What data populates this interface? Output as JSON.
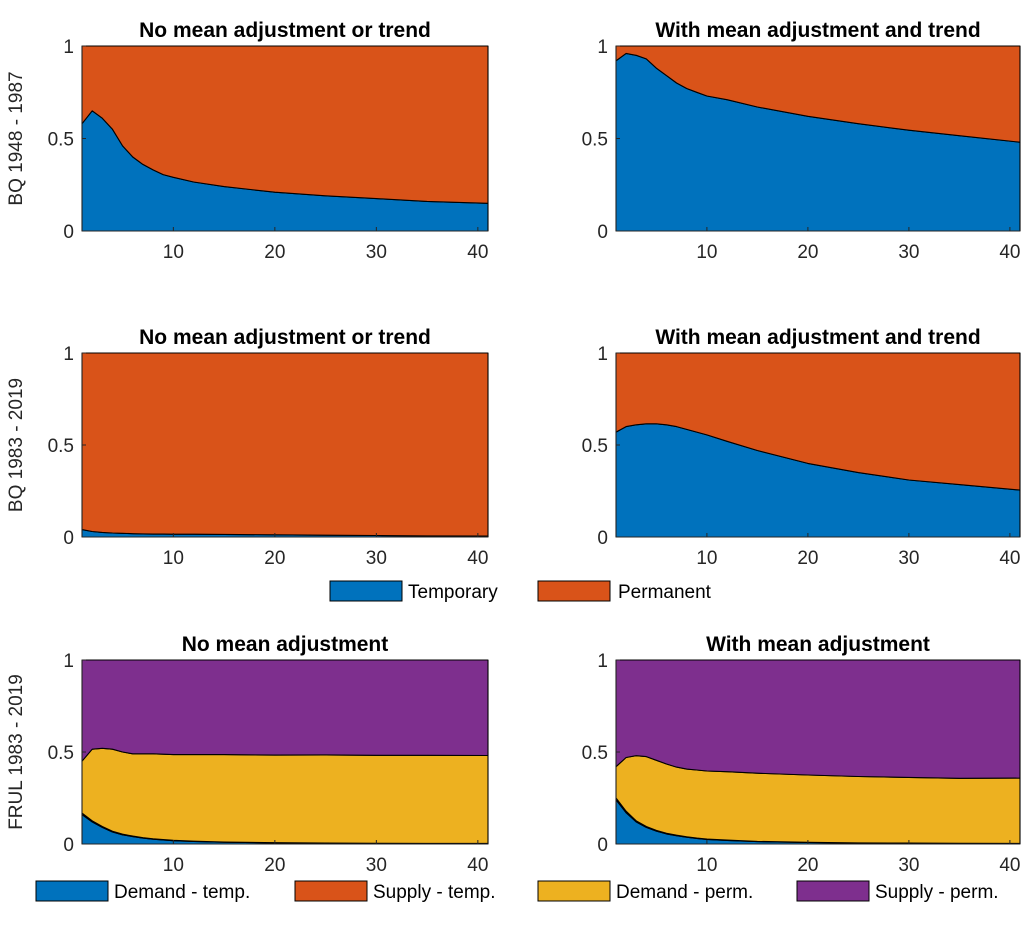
{
  "colors": {
    "blue": "#0072BD",
    "orange": "#D95319",
    "yellow": "#EDB120",
    "purple": "#7E2F8E"
  },
  "row_labels": [
    "BQ 1948 - 1987",
    "BQ 1983 - 2019",
    "FRUL 1983 - 2019"
  ],
  "legend_two": [
    {
      "label": "Temporary",
      "color": "#0072BD"
    },
    {
      "label": "Permanent",
      "color": "#D95319"
    }
  ],
  "legend_four": [
    {
      "label": "Demand - temp.",
      "color": "#0072BD"
    },
    {
      "label": "Supply - temp.",
      "color": "#D95319"
    },
    {
      "label": "Demand - perm.",
      "color": "#EDB120"
    },
    {
      "label": "Supply - perm.",
      "color": "#7E2F8E"
    }
  ],
  "chart_data": [
    {
      "type": "area",
      "title": "No mean adjustment or trend",
      "ylabel": "BQ 1948 - 1987",
      "xlim": [
        1,
        41
      ],
      "ylim": [
        0,
        1
      ],
      "xticks": [
        10,
        20,
        30,
        40
      ],
      "yticks": [
        0,
        0.5,
        1
      ],
      "x": [
        1,
        2,
        3,
        4,
        5,
        6,
        7,
        8,
        9,
        10,
        12,
        15,
        20,
        25,
        30,
        35,
        41
      ],
      "series": [
        {
          "name": "Temporary",
          "color": "#0072BD",
          "values": [
            0.58,
            0.65,
            0.61,
            0.55,
            0.46,
            0.4,
            0.36,
            0.33,
            0.305,
            0.29,
            0.265,
            0.24,
            0.21,
            0.19,
            0.175,
            0.16,
            0.15
          ]
        },
        {
          "name": "Permanent",
          "color": "#D95319",
          "values": [
            0.42,
            0.35,
            0.39,
            0.45,
            0.54,
            0.6,
            0.64,
            0.67,
            0.695,
            0.71,
            0.735,
            0.76,
            0.79,
            0.81,
            0.825,
            0.84,
            0.85
          ]
        }
      ]
    },
    {
      "type": "area",
      "title": "With mean adjustment and trend",
      "xlim": [
        1,
        41
      ],
      "ylim": [
        0,
        1
      ],
      "xticks": [
        10,
        20,
        30,
        40
      ],
      "yticks": [
        0,
        0.5,
        1
      ],
      "x": [
        1,
        2,
        3,
        4,
        5,
        6,
        7,
        8,
        9,
        10,
        12,
        15,
        20,
        25,
        30,
        35,
        41
      ],
      "series": [
        {
          "name": "Temporary",
          "color": "#0072BD",
          "values": [
            0.92,
            0.96,
            0.95,
            0.93,
            0.88,
            0.84,
            0.8,
            0.77,
            0.75,
            0.73,
            0.71,
            0.67,
            0.62,
            0.58,
            0.545,
            0.515,
            0.48
          ]
        },
        {
          "name": "Permanent",
          "color": "#D95319",
          "values": [
            0.08,
            0.04,
            0.05,
            0.07,
            0.12,
            0.16,
            0.2,
            0.23,
            0.25,
            0.27,
            0.29,
            0.33,
            0.38,
            0.42,
            0.455,
            0.485,
            0.52
          ]
        }
      ]
    },
    {
      "type": "area",
      "title": "No mean adjustment or trend",
      "ylabel": "BQ 1983 - 2019",
      "xlim": [
        1,
        41
      ],
      "ylim": [
        0,
        1
      ],
      "xticks": [
        10,
        20,
        30,
        40
      ],
      "yticks": [
        0,
        0.5,
        1
      ],
      "x": [
        1,
        2,
        3,
        4,
        5,
        6,
        7,
        8,
        9,
        10,
        12,
        15,
        20,
        25,
        30,
        35,
        41
      ],
      "series": [
        {
          "name": "Temporary",
          "color": "#0072BD",
          "values": [
            0.04,
            0.03,
            0.025,
            0.022,
            0.02,
            0.018,
            0.017,
            0.016,
            0.016,
            0.015,
            0.015,
            0.014,
            0.012,
            0.01,
            0.008,
            0.006,
            0.005
          ]
        },
        {
          "name": "Permanent",
          "color": "#D95319",
          "values": [
            0.96,
            0.97,
            0.975,
            0.978,
            0.98,
            0.982,
            0.983,
            0.984,
            0.984,
            0.985,
            0.985,
            0.986,
            0.988,
            0.99,
            0.992,
            0.994,
            0.995
          ]
        }
      ]
    },
    {
      "type": "area",
      "title": "With mean adjustment and trend",
      "xlim": [
        1,
        41
      ],
      "ylim": [
        0,
        1
      ],
      "xticks": [
        10,
        20,
        30,
        40
      ],
      "yticks": [
        0,
        0.5,
        1
      ],
      "x": [
        1,
        2,
        3,
        4,
        5,
        6,
        7,
        8,
        9,
        10,
        12,
        15,
        20,
        25,
        30,
        35,
        41
      ],
      "series": [
        {
          "name": "Temporary",
          "color": "#0072BD",
          "values": [
            0.57,
            0.6,
            0.61,
            0.615,
            0.615,
            0.61,
            0.6,
            0.585,
            0.57,
            0.555,
            0.52,
            0.47,
            0.4,
            0.35,
            0.31,
            0.285,
            0.255
          ]
        },
        {
          "name": "Permanent",
          "color": "#D95319",
          "values": [
            0.43,
            0.4,
            0.39,
            0.385,
            0.385,
            0.39,
            0.4,
            0.415,
            0.43,
            0.445,
            0.48,
            0.53,
            0.6,
            0.65,
            0.69,
            0.715,
            0.745
          ]
        }
      ]
    },
    {
      "type": "area",
      "title": "No mean adjustment",
      "ylabel": "FRUL 1983 - 2019",
      "xlim": [
        1,
        41
      ],
      "ylim": [
        0,
        1
      ],
      "xticks": [
        10,
        20,
        30,
        40
      ],
      "yticks": [
        0,
        0.5,
        1
      ],
      "x": [
        1,
        2,
        3,
        4,
        5,
        6,
        7,
        8,
        9,
        10,
        12,
        15,
        20,
        25,
        30,
        35,
        41
      ],
      "series": [
        {
          "name": "Demand - temp.",
          "color": "#0072BD",
          "values": [
            0.16,
            0.12,
            0.09,
            0.065,
            0.05,
            0.04,
            0.032,
            0.026,
            0.022,
            0.018,
            0.014,
            0.01,
            0.006,
            0.004,
            0.003,
            0.002,
            0.002
          ]
        },
        {
          "name": "Supply - temp.",
          "color": "#D95319",
          "values": [
            0.008,
            0.006,
            0.005,
            0.004,
            0.003,
            0.003,
            0.002,
            0.002,
            0.002,
            0.002,
            0.001,
            0.001,
            0.001,
            0.001,
            0.001,
            0.001,
            0.001
          ]
        },
        {
          "name": "Demand - perm.",
          "color": "#EDB120",
          "values": [
            0.282,
            0.389,
            0.425,
            0.446,
            0.447,
            0.447,
            0.456,
            0.462,
            0.464,
            0.466,
            0.471,
            0.475,
            0.476,
            0.479,
            0.478,
            0.479,
            0.478
          ]
        },
        {
          "name": "Supply - perm.",
          "color": "#7E2F8E",
          "values": [
            0.55,
            0.485,
            0.48,
            0.485,
            0.5,
            0.51,
            0.51,
            0.51,
            0.512,
            0.514,
            0.514,
            0.514,
            0.517,
            0.516,
            0.518,
            0.518,
            0.519
          ]
        }
      ]
    },
    {
      "type": "area",
      "title": "With mean adjustment",
      "xlim": [
        1,
        41
      ],
      "ylim": [
        0,
        1
      ],
      "xticks": [
        10,
        20,
        30,
        40
      ],
      "yticks": [
        0,
        0.5,
        1
      ],
      "x": [
        1,
        2,
        3,
        4,
        5,
        6,
        7,
        8,
        9,
        10,
        12,
        15,
        20,
        25,
        30,
        35,
        41
      ],
      "series": [
        {
          "name": "Demand - temp.",
          "color": "#0072BD",
          "values": [
            0.24,
            0.17,
            0.12,
            0.09,
            0.07,
            0.055,
            0.045,
            0.037,
            0.03,
            0.025,
            0.019,
            0.013,
            0.008,
            0.005,
            0.004,
            0.003,
            0.002
          ]
        },
        {
          "name": "Supply - temp.",
          "color": "#D95319",
          "values": [
            0.01,
            0.008,
            0.006,
            0.005,
            0.004,
            0.003,
            0.003,
            0.002,
            0.002,
            0.002,
            0.002,
            0.001,
            0.001,
            0.001,
            0.001,
            0.001,
            0.001
          ]
        },
        {
          "name": "Demand - perm.",
          "color": "#EDB120",
          "values": [
            0.17,
            0.292,
            0.354,
            0.38,
            0.381,
            0.377,
            0.37,
            0.368,
            0.37,
            0.37,
            0.372,
            0.371,
            0.366,
            0.361,
            0.357,
            0.353,
            0.355
          ]
        },
        {
          "name": "Supply - perm.",
          "color": "#7E2F8E",
          "values": [
            0.58,
            0.53,
            0.52,
            0.525,
            0.545,
            0.565,
            0.582,
            0.593,
            0.598,
            0.603,
            0.607,
            0.615,
            0.625,
            0.633,
            0.638,
            0.643,
            0.642
          ]
        }
      ]
    }
  ]
}
